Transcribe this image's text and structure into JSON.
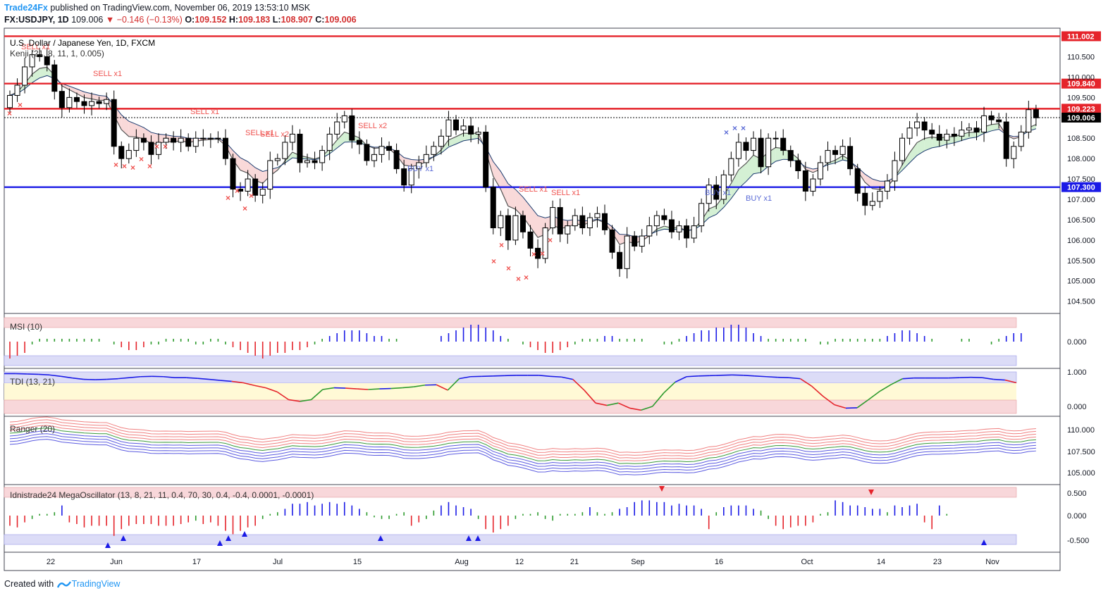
{
  "header": {
    "brand": "Trade24Fx",
    "published": "published on TradingView.com, November 06, 2019 13:53:10 MSK",
    "symbol": "FX:USDJPY, 1D",
    "last": "109.006",
    "change": "▼ −0.146 (−0.13%)",
    "o_label": "O:",
    "o": "109.152",
    "h_label": "H:",
    "h": "109.183",
    "l_label": "L:",
    "l": "108.907",
    "c_label": "C:",
    "c": "109.006"
  },
  "footer": {
    "created_with": "Created with",
    "tradingview": "TradingView"
  },
  "colors": {
    "up": "#ffffff",
    "down": "#000000",
    "red": "#e5242b",
    "blue": "#1a1ae6",
    "sell": "#ef5350",
    "buy": "#5b6bd6"
  },
  "chart_data": [
    {
      "type": "candlestick",
      "title": "U.S. Dollar / Japanese Yen, 1D, FXCM",
      "indicator_label": "Kenji (21, 8, 11, 1, 0.005)",
      "ylim": [
        104.2,
        111.2
      ],
      "y_ticks": [
        "104.500",
        "105.000",
        "105.500",
        "106.000",
        "106.500",
        "107.000",
        "107.500",
        "108.000",
        "108.500",
        "109.000",
        "109.500",
        "110.000",
        "110.500"
      ],
      "x_ticks": [
        "22",
        "Jun",
        "17",
        "Jul",
        "15",
        "Aug",
        "12",
        "21",
        "Sep",
        "16",
        "Oct",
        "14",
        "23",
        "Nov"
      ],
      "levels": [
        {
          "value": 111.002,
          "label": "111.002",
          "color": "#e5242b"
        },
        {
          "value": 109.84,
          "label": "109.840",
          "color": "#e5242b"
        },
        {
          "value": 109.223,
          "label": "109.223",
          "color": "#e5242b"
        },
        {
          "value": 109.006,
          "label": "109.006",
          "color": "#000000"
        },
        {
          "value": 107.3,
          "label": "107.300",
          "color": "#1a1ae6"
        }
      ],
      "close": [
        109.55,
        109.8,
        110.25,
        110.55,
        110.5,
        110.3,
        109.65,
        109.25,
        109.5,
        109.4,
        109.3,
        109.4,
        109.35,
        109.45,
        108.3,
        108.0,
        108.2,
        108.5,
        108.4,
        108.1,
        108.4,
        108.5,
        108.4,
        108.5,
        108.3,
        108.5,
        108.5,
        108.5,
        108.5,
        108.0,
        107.25,
        107.2,
        107.5,
        107.1,
        107.25,
        107.95,
        108.0,
        108.4,
        108.6,
        107.9,
        107.95,
        107.9,
        108.2,
        108.6,
        108.9,
        109.05,
        108.45,
        108.35,
        107.95,
        108.1,
        108.3,
        108.2,
        107.75,
        107.35,
        107.75,
        107.9,
        108.1,
        108.3,
        108.55,
        108.95,
        108.7,
        108.8,
        108.6,
        108.65,
        107.3,
        106.3,
        106.6,
        106.0,
        106.6,
        106.2,
        105.8,
        105.55,
        106.3,
        106.8,
        106.15,
        106.35,
        106.6,
        106.3,
        106.55,
        106.65,
        106.25,
        105.7,
        105.3,
        106.1,
        105.85,
        106.1,
        106.35,
        106.6,
        106.5,
        106.2,
        106.35,
        106.05,
        106.35,
        106.9,
        107.35,
        107.0,
        107.6,
        108.0,
        108.4,
        108.2,
        108.5,
        107.8,
        108.5,
        108.5,
        108.2,
        107.95,
        107.7,
        107.2,
        107.5,
        107.9,
        108.2,
        108.1,
        108.3,
        107.75,
        107.15,
        106.85,
        106.95,
        107.2,
        107.45,
        107.95,
        108.5,
        108.75,
        108.9,
        108.7,
        108.6,
        108.45,
        108.6,
        108.55,
        108.7,
        108.75,
        108.65,
        109.05,
        108.95,
        108.9,
        108.0,
        108.3,
        108.65,
        109.2,
        109.0
      ],
      "open": [
        109.25,
        109.55,
        109.8,
        110.25,
        110.55,
        110.5,
        110.3,
        109.65,
        109.25,
        109.5,
        109.4,
        109.3,
        109.4,
        109.35,
        109.45,
        108.3,
        108.0,
        108.2,
        108.5,
        108.4,
        108.1,
        108.4,
        108.5,
        108.4,
        108.5,
        108.3,
        108.5,
        108.5,
        108.5,
        108.5,
        108.0,
        107.25,
        107.2,
        107.5,
        107.1,
        107.25,
        107.95,
        108.0,
        108.4,
        108.6,
        107.9,
        107.95,
        107.9,
        108.2,
        108.6,
        108.9,
        109.05,
        108.45,
        108.35,
        107.95,
        108.1,
        108.3,
        108.2,
        107.75,
        107.35,
        107.75,
        107.9,
        108.1,
        108.3,
        108.55,
        108.95,
        108.7,
        108.8,
        108.6,
        108.65,
        107.3,
        106.3,
        106.6,
        106.0,
        106.6,
        106.2,
        105.8,
        105.55,
        106.3,
        106.8,
        106.15,
        106.35,
        106.6,
        106.3,
        106.55,
        106.65,
        106.25,
        105.7,
        105.3,
        106.1,
        105.85,
        106.1,
        106.35,
        106.6,
        106.5,
        106.2,
        106.35,
        106.05,
        106.35,
        106.9,
        107.35,
        107.0,
        107.6,
        108.0,
        108.4,
        108.2,
        108.5,
        107.8,
        108.5,
        108.5,
        108.2,
        107.95,
        107.7,
        107.2,
        107.5,
        107.9,
        108.2,
        108.1,
        108.3,
        107.75,
        107.15,
        106.85,
        106.95,
        107.2,
        107.45,
        107.95,
        108.5,
        108.75,
        108.9,
        108.7,
        108.6,
        108.45,
        108.6,
        108.55,
        108.7,
        108.75,
        108.65,
        109.05,
        108.95,
        108.9,
        108.0,
        108.3,
        108.65,
        109.2
      ]
    },
    {
      "type": "histogram",
      "title": "MSI (10)",
      "y_ticks": [
        "0.000"
      ],
      "values": [
        -0.6,
        -0.5,
        -0.4,
        -0.1,
        0.1,
        0.1,
        0.1,
        0.1,
        0.1,
        0.1,
        0.1,
        0.1,
        0.1,
        0.0,
        -0.1,
        -0.2,
        -0.3,
        -0.3,
        -0.2,
        -0.1,
        -0.1,
        0.1,
        0.1,
        0.1,
        0.1,
        -0.1,
        -0.1,
        0.1,
        0.1,
        -0.1,
        -0.2,
        -0.3,
        -0.4,
        -0.5,
        -0.6,
        -0.5,
        -0.4,
        -0.4,
        -0.3,
        -0.3,
        -0.2,
        -0.1,
        0.1,
        0.2,
        0.3,
        0.4,
        0.4,
        0.4,
        0.3,
        0.2,
        0.2,
        0.1,
        0.1,
        0.0,
        0.0,
        0.0,
        0.0,
        0.0,
        0.2,
        0.3,
        0.4,
        0.5,
        0.6,
        0.6,
        0.5,
        0.4,
        0.2,
        0.1,
        0.0,
        -0.1,
        -0.2,
        -0.3,
        -0.4,
        -0.4,
        -0.3,
        -0.2,
        -0.1,
        0.1,
        0.1,
        0.1,
        0.2,
        0.2,
        0.1,
        0.1,
        0.1,
        0.1,
        0.0,
        0.0,
        -0.1,
        -0.1,
        0.1,
        0.2,
        0.3,
        0.4,
        0.4,
        0.5,
        0.5,
        0.6,
        0.6,
        0.5,
        0.3,
        0.2,
        0.1,
        0.1,
        0.1,
        0.1,
        0.1,
        0.1,
        0.0,
        -0.1,
        -0.1,
        0.1,
        0.1,
        0.1,
        0.1,
        0.1,
        0.1,
        0.1,
        0.2,
        0.3,
        0.4,
        0.4,
        0.3,
        0.2,
        0.1,
        0.0,
        0.0,
        0.0,
        0.1,
        0.1,
        0.0,
        0.0,
        -0.1,
        0.1,
        0.2,
        0.3,
        0.3
      ]
    },
    {
      "type": "line",
      "title": "TDI (13, 21)",
      "y_ticks": [
        "1.000",
        "0.000"
      ],
      "values": [
        0.97,
        0.97,
        0.96,
        0.95,
        0.93,
        0.89,
        0.84,
        0.8,
        0.79,
        0.8,
        0.82,
        0.85,
        0.88,
        0.89,
        0.88,
        0.85,
        0.85,
        0.83,
        0.8,
        0.77,
        0.74,
        0.7,
        0.62,
        0.55,
        0.43,
        0.2,
        0.15,
        0.2,
        0.5,
        0.55,
        0.54,
        0.52,
        0.5,
        0.52,
        0.53,
        0.55,
        0.58,
        0.63,
        0.64,
        0.48,
        0.82,
        0.88,
        0.89,
        0.9,
        0.91,
        0.92,
        0.92,
        0.92,
        0.89,
        0.87,
        0.8,
        0.48,
        0.1,
        0.03,
        0.1,
        -0.05,
        -0.11,
        0.0,
        0.4,
        0.72,
        0.88,
        0.9,
        0.91,
        0.92,
        0.93,
        0.92,
        0.9,
        0.88,
        0.86,
        0.85,
        0.82,
        0.6,
        0.3,
        0.05,
        -0.05,
        -0.04,
        0.2,
        0.45,
        0.65,
        0.82,
        0.84,
        0.84,
        0.84,
        0.84,
        0.85,
        0.86,
        0.85,
        0.8,
        0.78,
        0.7
      ]
    },
    {
      "type": "line",
      "title": "Ranger (20)",
      "y_ticks": [
        "110.000",
        "107.500",
        "105.000"
      ]
    },
    {
      "type": "histogram",
      "title": "Idnistrade24 MegaOscillator (13, 8, 21, 11, 0.4, 70, 30, 0.4, -0.4, 0.0001, -0.0001)",
      "y_ticks": [
        "0.500",
        "0.000",
        "-0.500"
      ],
      "values": [
        -0.3,
        -0.35,
        -0.2,
        -0.1,
        0.05,
        0.05,
        0.1,
        0.3,
        -0.2,
        -0.25,
        -0.35,
        -0.3,
        -0.3,
        -0.3,
        -0.6,
        -0.4,
        -0.3,
        -0.25,
        -0.25,
        -0.25,
        -0.3,
        -0.3,
        -0.3,
        -0.25,
        -0.2,
        -0.15,
        -0.25,
        -0.2,
        -0.3,
        -0.45,
        -0.55,
        -0.45,
        -0.35,
        -0.3,
        -0.1,
        0.05,
        0.1,
        0.2,
        0.35,
        0.35,
        0.4,
        0.3,
        0.35,
        0.4,
        0.35,
        0.4,
        0.3,
        0.2,
        0.1,
        -0.05,
        -0.1,
        -0.1,
        0.05,
        0.1,
        -0.3,
        -0.2,
        -0.1,
        0.15,
        0.3,
        0.4,
        0.3,
        0.25,
        0.2,
        -0.1,
        -0.4,
        -0.5,
        -0.4,
        -0.3,
        -0.1,
        0.05,
        0.05,
        0.1,
        -0.1,
        -0.15,
        0.05,
        0.05,
        0.05,
        0.1,
        0.25,
        0.1,
        0.05,
        0.1,
        0.2,
        0.25,
        0.4,
        0.45,
        0.45,
        0.4,
        0.4,
        0.3,
        0.35,
        0.3,
        0.3,
        0.2,
        -0.4,
        0.1,
        0.25,
        0.3,
        0.3,
        0.3,
        0.2,
        0.15,
        -0.1,
        -0.3,
        -0.4,
        -0.35,
        -0.3,
        -0.3,
        -0.2,
        0.05,
        0.1,
        0.45,
        0.4,
        0.3,
        0.3,
        0.25,
        0.2,
        0.2,
        0.1,
        0.3,
        0.25,
        0.3,
        0.35,
        -0.2,
        -0.4,
        0.3,
        0.05
      ]
    }
  ]
}
